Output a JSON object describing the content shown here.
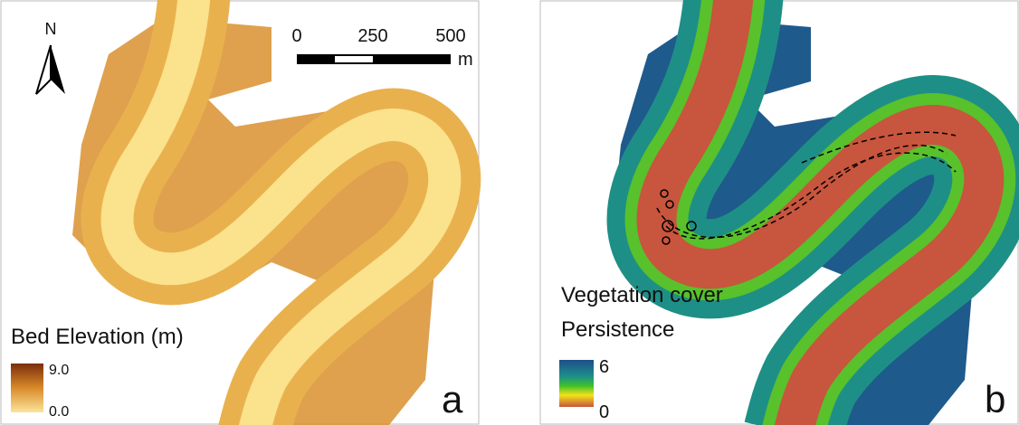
{
  "panel_a": {
    "north": "N",
    "scale_ticks": [
      "0",
      "250",
      "500"
    ],
    "scale_unit": "m",
    "legend_title": "Bed Elevation (m)",
    "legend_max": "9.0",
    "legend_min": "0.0",
    "panel_label": "a"
  },
  "panel_b": {
    "legend_title_lines": [
      "Vegetation cover",
      "Persistence"
    ],
    "legend_max": "6",
    "legend_min": "0",
    "panel_label": "b"
  }
}
